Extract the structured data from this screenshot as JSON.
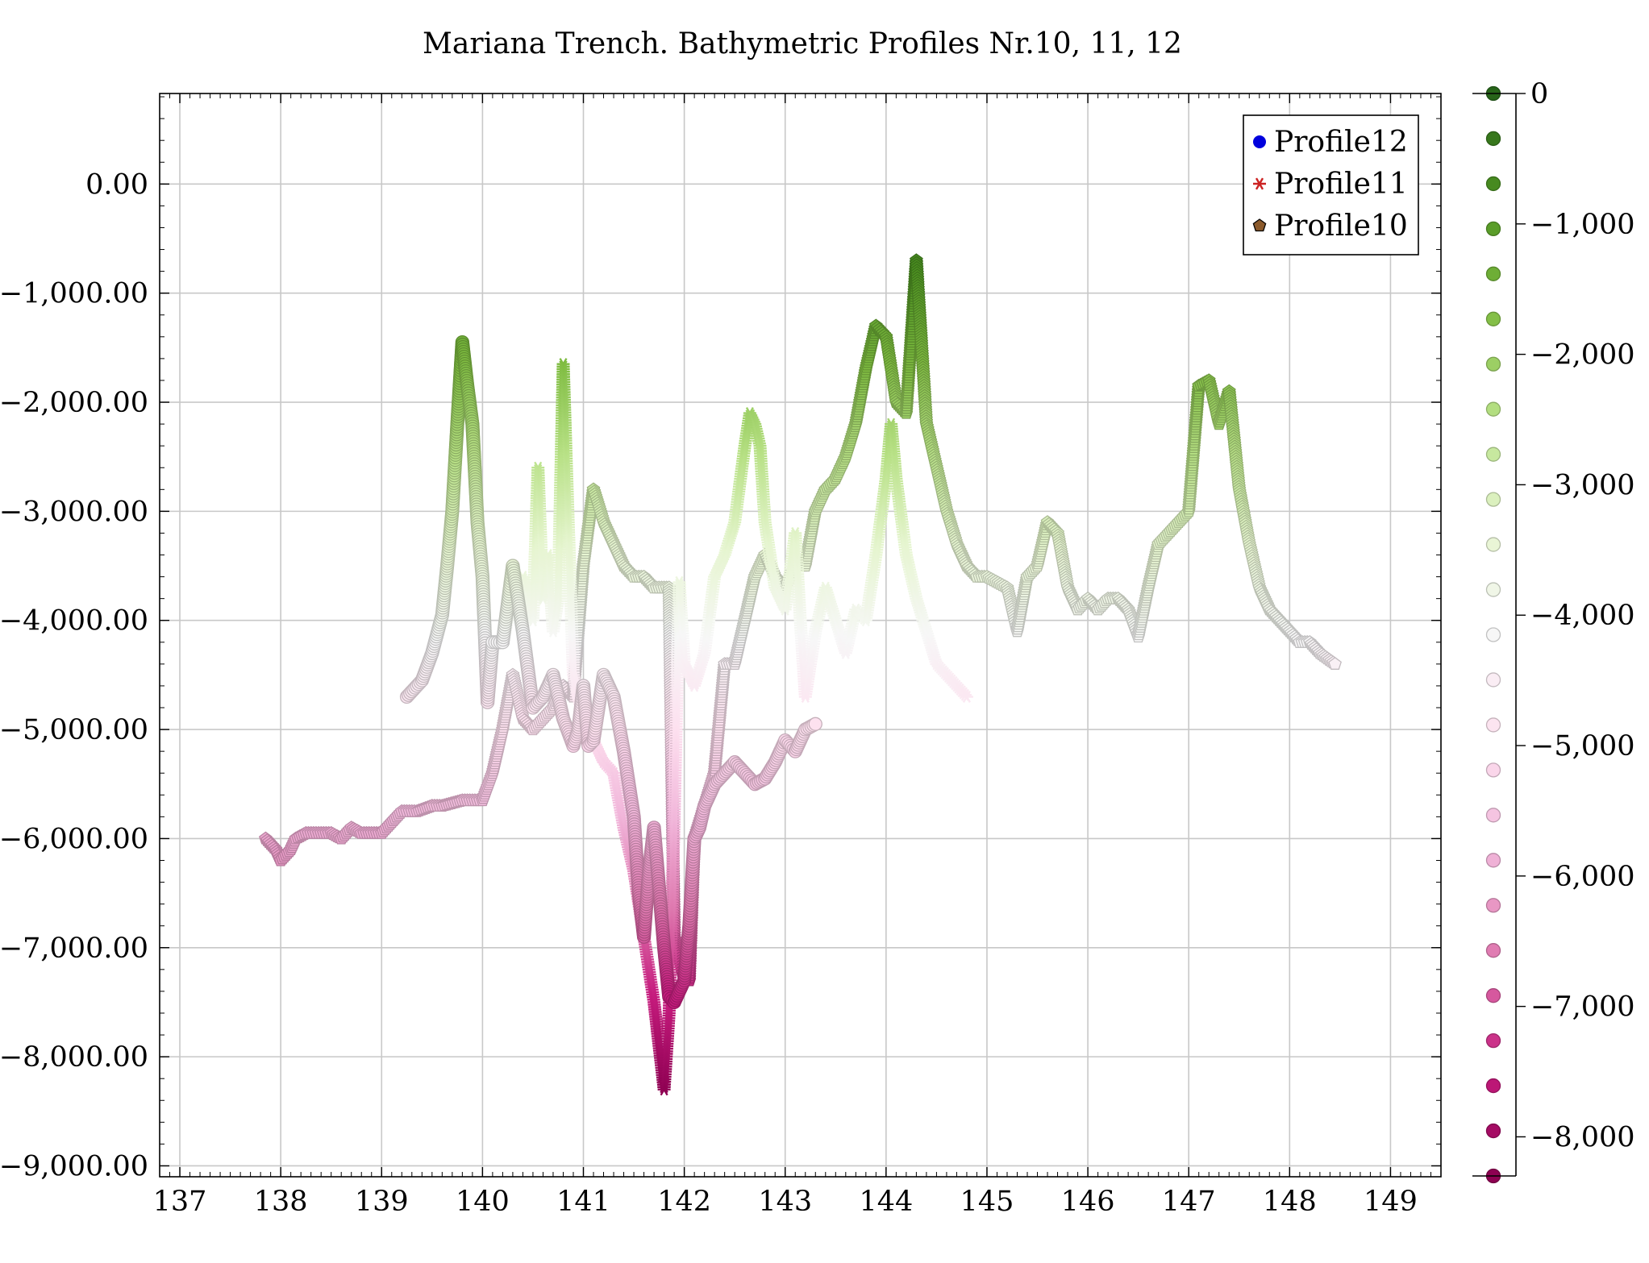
{
  "chart_data": {
    "type": "scatter",
    "title": "Mariana Trench. Bathymetric Profiles Nr.10, 11, 12",
    "xlabel": "",
    "ylabel": "",
    "xlim": [
      136.8,
      149.5
    ],
    "ylim": [
      -9100,
      830
    ],
    "grid": true,
    "legend_position": "top-right",
    "x_ticks": [
      137,
      138,
      139,
      140,
      141,
      142,
      143,
      144,
      145,
      146,
      147,
      148,
      149
    ],
    "y_ticks": [
      0,
      -1000,
      -2000,
      -3000,
      -4000,
      -5000,
      -6000,
      -7000,
      -8000,
      -9000
    ],
    "y_tick_labels": [
      "0.00",
      "−1,000.00",
      "−2,000.00",
      "−3,000.00",
      "−4,000.00",
      "−5,000.00",
      "−6,000.00",
      "−7,000.00",
      "−8,000.00",
      "−9,000.00"
    ],
    "colorbar": {
      "range": [
        -8300,
        0
      ],
      "ticks": [
        0,
        -1000,
        -2000,
        -3000,
        -4000,
        -5000,
        -6000,
        -7000,
        -8000
      ],
      "tick_labels": [
        "0",
        "−1,000",
        "−2,000",
        "−3,000",
        "−4,000",
        "−5,000",
        "−6,000",
        "−7,000",
        "−8,000"
      ],
      "colors": [
        "#8e0152",
        "#c51b7d",
        "#de77ae",
        "#f1b6da",
        "#fde0ef",
        "#f7f7f7",
        "#e6f5d0",
        "#b8e186",
        "#7fbc41",
        "#4d9221",
        "#276419"
      ]
    },
    "legend": [
      {
        "label": "Profile12",
        "marker": "circle",
        "color": "#0000dd"
      },
      {
        "label": "Profile11",
        "marker": "star",
        "color": "#cc2222"
      },
      {
        "label": "Profile10",
        "marker": "pentagon",
        "color": "#8b5a2b"
      }
    ],
    "series": [
      {
        "name": "Profile12",
        "marker": "circle",
        "x": [
          139.25,
          139.4,
          139.5,
          139.6,
          139.65,
          139.7,
          139.75,
          139.8,
          139.85,
          139.9,
          139.95,
          140.0,
          140.05,
          140.1,
          140.2,
          140.3,
          140.4,
          140.5,
          140.6,
          140.7,
          140.8,
          140.9,
          140.95,
          141.0,
          141.05,
          141.1,
          141.2,
          141.3,
          141.4,
          141.5,
          141.55,
          141.6,
          141.65,
          141.7,
          141.8,
          141.85,
          141.9,
          142.0,
          142.05,
          142.1,
          142.15,
          142.2,
          142.3,
          142.4,
          142.5,
          142.6,
          142.7,
          142.8,
          142.9,
          143.0,
          143.1,
          143.2,
          143.3
        ],
        "y": [
          -4700,
          -4550,
          -4300,
          -3950,
          -3500,
          -3000,
          -2200,
          -1450,
          -1850,
          -2200,
          -3100,
          -3600,
          -4750,
          -4200,
          -4200,
          -3500,
          -4100,
          -4800,
          -4700,
          -4500,
          -4900,
          -5150,
          -5000,
          -4600,
          -5150,
          -5100,
          -4500,
          -4700,
          -5200,
          -5800,
          -6500,
          -6900,
          -6300,
          -5900,
          -7000,
          -7450,
          -7500,
          -7300,
          -6800,
          -6000,
          -5900,
          -5700,
          -5500,
          -5400,
          -5300,
          -5400,
          -5500,
          -5450,
          -5300,
          -5100,
          -5200,
          -5000,
          -4950
        ]
      },
      {
        "name": "Profile11",
        "marker": "star",
        "x": [
          140.2,
          140.3,
          140.4,
          140.5,
          140.55,
          140.6,
          140.65,
          140.7,
          140.75,
          140.8,
          140.85,
          140.9,
          141.0,
          141.1,
          141.2,
          141.3,
          141.4,
          141.5,
          141.6,
          141.7,
          141.75,
          141.8,
          141.85,
          141.9,
          141.95,
          142.0,
          142.1,
          142.2,
          142.3,
          142.4,
          142.5,
          142.6,
          142.65,
          142.7,
          142.75,
          142.8,
          142.9,
          143.0,
          143.1,
          143.15,
          143.2,
          143.3,
          143.4,
          143.5,
          143.6,
          143.7,
          143.8,
          143.9,
          144.0,
          144.05,
          144.1,
          144.2,
          144.3,
          144.4,
          144.5,
          144.6,
          144.7,
          144.8
        ],
        "y": [
          -4200,
          -3800,
          -3600,
          -4000,
          -2600,
          -3800,
          -3400,
          -4100,
          -3800,
          -1650,
          -3100,
          -4500,
          -4900,
          -5100,
          -5300,
          -5400,
          -5900,
          -6300,
          -6900,
          -7500,
          -7900,
          -8300,
          -7600,
          -5800,
          -3650,
          -4400,
          -4600,
          -4300,
          -3600,
          -3400,
          -3100,
          -2400,
          -2100,
          -2200,
          -2400,
          -3100,
          -3700,
          -3900,
          -3200,
          -4000,
          -4700,
          -4100,
          -3700,
          -4000,
          -4300,
          -3900,
          -4000,
          -3400,
          -2700,
          -2200,
          -2700,
          -3400,
          -3800,
          -4100,
          -4400,
          -4500,
          -4600,
          -4700
        ]
      },
      {
        "name": "Profile10",
        "marker": "pentagon",
        "x": [
          137.85,
          137.95,
          138.0,
          138.1,
          138.15,
          138.25,
          138.5,
          138.6,
          138.7,
          138.8,
          138.9,
          139.0,
          139.1,
          139.2,
          139.35,
          139.5,
          139.6,
          139.8,
          140.0,
          140.1,
          140.2,
          140.3,
          140.4,
          140.5,
          140.6,
          140.7,
          140.8,
          140.9,
          141.0,
          141.1,
          141.2,
          141.3,
          141.4,
          141.5,
          141.6,
          141.7,
          141.8,
          141.85,
          141.9,
          142.0,
          142.05,
          142.1,
          142.2,
          142.3,
          142.4,
          142.5,
          142.6,
          142.7,
          142.8,
          142.9,
          143.0,
          143.1,
          143.2,
          143.3,
          143.4,
          143.5,
          143.6,
          143.7,
          143.8,
          143.9,
          144.0,
          144.1,
          144.2,
          144.3,
          144.4,
          144.5,
          144.6,
          144.7,
          144.8,
          144.9,
          145.0,
          145.2,
          145.3,
          145.4,
          145.5,
          145.6,
          145.7,
          145.8,
          145.9,
          146.0,
          146.1,
          146.2,
          146.3,
          146.4,
          146.5,
          146.6,
          146.7,
          146.8,
          146.9,
          147.0,
          147.1,
          147.2,
          147.3,
          147.4,
          147.5,
          147.6,
          147.7,
          147.8,
          147.9,
          148.0,
          148.1,
          148.2,
          148.3,
          148.45
        ],
        "y": [
          -6000,
          -6100,
          -6200,
          -6100,
          -6000,
          -5950,
          -5950,
          -6000,
          -5900,
          -5950,
          -5950,
          -5950,
          -5850,
          -5750,
          -5750,
          -5700,
          -5700,
          -5650,
          -5650,
          -5400,
          -5000,
          -4500,
          -4900,
          -5000,
          -4900,
          -4800,
          -4600,
          -4700,
          -3500,
          -2800,
          -3100,
          -3300,
          -3500,
          -3600,
          -3600,
          -3700,
          -3700,
          -3700,
          -6900,
          -7300,
          -7300,
          -6000,
          -5700,
          -5400,
          -4400,
          -4400,
          -4000,
          -3600,
          -3400,
          -3600,
          -3700,
          -3500,
          -3500,
          -3000,
          -2800,
          -2700,
          -2500,
          -2200,
          -1700,
          -1300,
          -1400,
          -2000,
          -2100,
          -700,
          -2200,
          -2600,
          -3000,
          -3300,
          -3500,
          -3600,
          -3600,
          -3700,
          -4100,
          -3600,
          -3500,
          -3100,
          -3200,
          -3700,
          -3900,
          -3800,
          -3900,
          -3800,
          -3800,
          -3900,
          -4150,
          -3700,
          -3300,
          -3200,
          -3100,
          -3000,
          -1850,
          -1800,
          -2200,
          -1900,
          -2800,
          -3300,
          -3700,
          -3900,
          -4000,
          -4100,
          -4200,
          -4200,
          -4300,
          -4400
        ]
      }
    ]
  }
}
